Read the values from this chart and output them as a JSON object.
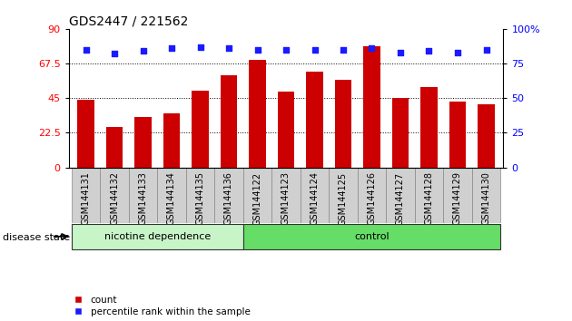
{
  "title": "GDS2447 / 221562",
  "categories": [
    "GSM144131",
    "GSM144132",
    "GSM144133",
    "GSM144134",
    "GSM144135",
    "GSM144136",
    "GSM144122",
    "GSM144123",
    "GSM144124",
    "GSM144125",
    "GSM144126",
    "GSM144127",
    "GSM144128",
    "GSM144129",
    "GSM144130"
  ],
  "counts": [
    44,
    26,
    33,
    35,
    50,
    60,
    70,
    49,
    62,
    57,
    79,
    45,
    52,
    43,
    41
  ],
  "percentile_ranks": [
    85,
    82,
    84,
    86,
    87,
    86,
    85,
    85,
    85,
    85,
    86,
    83,
    84,
    83,
    85
  ],
  "group_labels": [
    "nicotine dependence",
    "control"
  ],
  "group_sizes": [
    6,
    9
  ],
  "group_colors_light": [
    "#c8f5c8",
    "#66dd66"
  ],
  "bar_color": "#cc0000",
  "dot_color": "#1a1aff",
  "left_yticks": [
    0,
    22.5,
    45,
    67.5,
    90
  ],
  "right_yticks": [
    0,
    25,
    50,
    75,
    100
  ],
  "left_ylim": [
    0,
    90
  ],
  "right_ylim": [
    0,
    100
  ],
  "hlines": [
    22.5,
    45,
    67.5
  ],
  "disease_state_label": "disease state",
  "legend_count_label": "count",
  "legend_pct_label": "percentile rank within the sample",
  "bg_color": "#ffffff",
  "tick_label_fontsize": 7,
  "title_fontsize": 10,
  "xlabel_gray": "#d0d0d0",
  "xlabel_gray_border": "#888888"
}
